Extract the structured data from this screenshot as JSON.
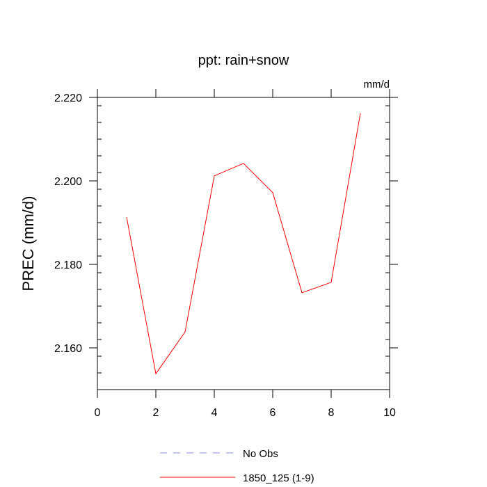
{
  "chart_data": {
    "type": "line",
    "title": "ppt: rain+snow",
    "units": "mm/d",
    "ylabel": "PREC  (mm/d)",
    "xlabel": "",
    "xlim": [
      0,
      10
    ],
    "ylim": [
      2.15,
      2.22
    ],
    "x_ticks": [
      0,
      2,
      4,
      6,
      8,
      10
    ],
    "x_tick_labels": [
      "0",
      "2",
      "4",
      "6",
      "8",
      "10"
    ],
    "y_ticks": [
      2.16,
      2.18,
      2.2,
      2.22
    ],
    "y_tick_labels": [
      "2.160",
      "2.180",
      "2.200",
      "2.220"
    ],
    "grid": false,
    "legend_position": "bottom",
    "series": [
      {
        "name": "1850_125 (1-9)",
        "color": "#ff0000",
        "style": "solid",
        "x": [
          1,
          2,
          3,
          4,
          5,
          6,
          7,
          8,
          9
        ],
        "values": [
          2.1913,
          2.1538,
          2.1638,
          2.2012,
          2.2042,
          2.1972,
          2.1732,
          2.1757,
          2.2162
        ]
      }
    ],
    "legend": [
      {
        "label": "No Obs",
        "color": "#8a8ae6",
        "style": "dashed"
      },
      {
        "label": "1850_125 (1-9)",
        "color": "#ff0000",
        "style": "solid"
      }
    ]
  }
}
